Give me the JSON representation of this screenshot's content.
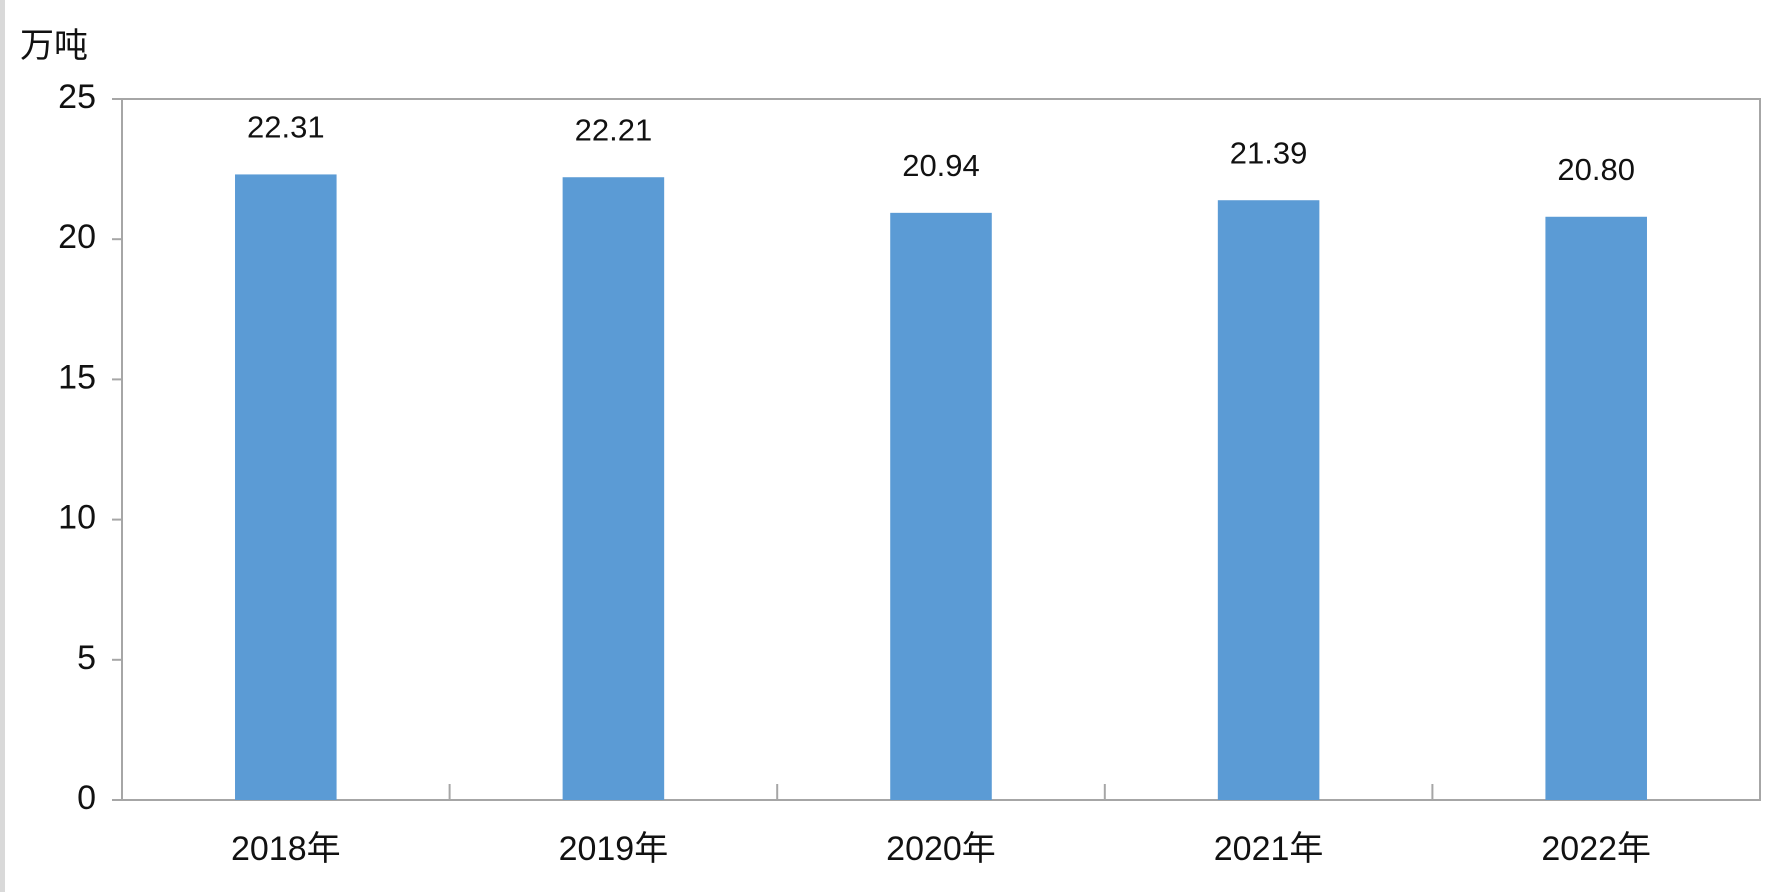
{
  "chart_data": {
    "type": "bar",
    "y_label": "万吨",
    "categories": [
      "2018年",
      "2019年",
      "2020年",
      "2021年",
      "2022年"
    ],
    "values": [
      22.31,
      22.21,
      20.94,
      21.39,
      20.8
    ],
    "value_labels": [
      "22.31",
      "22.21",
      "20.94",
      "21.39",
      "20.80"
    ],
    "color": "#5b9bd5",
    "ylim": [
      0,
      25
    ],
    "yticks": [
      0,
      5,
      10,
      15,
      20,
      25
    ],
    "grid": false
  }
}
